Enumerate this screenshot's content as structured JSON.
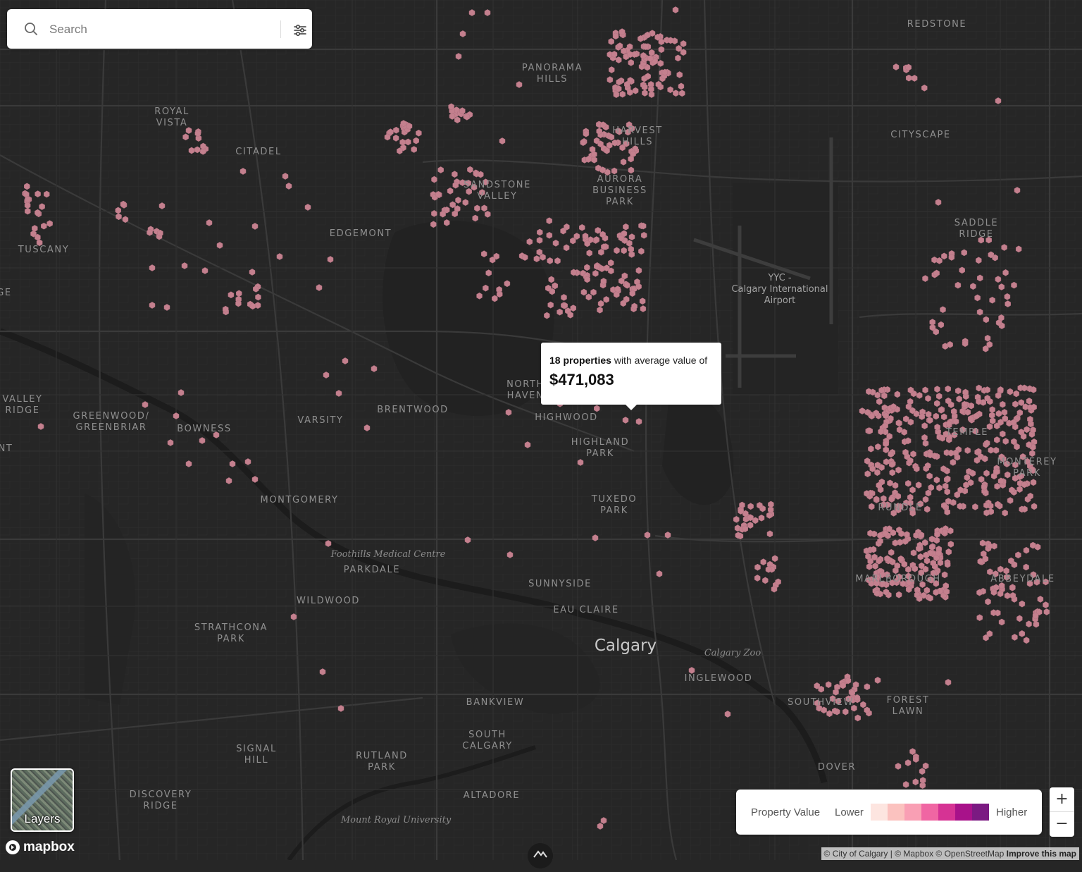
{
  "search": {
    "placeholder": "Search"
  },
  "icons": {
    "search": "search-icon",
    "filter": "sliders-icon",
    "compass": "mapbox-compass-icon"
  },
  "tooltip": {
    "count_text": "18 properties",
    "suffix_text": " with average value of",
    "value": "$471,083"
  },
  "legend": {
    "title": "Property Value",
    "lower": "Lower",
    "higher": "Higher",
    "colors": [
      "#fde5e0",
      "#fbc2bf",
      "#f99fb4",
      "#f066a3",
      "#d63394",
      "#a8128a",
      "#7b1a82"
    ]
  },
  "zoom": {
    "in": "+",
    "out": "−"
  },
  "layers": {
    "label": "Layers"
  },
  "branding": {
    "logo_text": "mapbox"
  },
  "attribution": {
    "text": "© City of Calgary | © Mapbox © OpenStreetMap",
    "improve": "Improve this map"
  },
  "map": {
    "city_label": "Calgary",
    "hex_color": "#c4808e",
    "background": "#262626",
    "neighbourhoods": [
      [
        "REDSTONE"
      ],
      [
        "PANORAMA",
        "HILLS"
      ],
      [
        "ROYAL",
        "VISTA"
      ],
      [
        "CITADEL"
      ],
      [
        "HARVEST",
        "HILLS"
      ],
      [
        "CITYSCAPE"
      ],
      [
        "SANDSTONE",
        "VALLEY"
      ],
      [
        "AURORA",
        "BUSINESS",
        "PARK"
      ],
      [
        "SADDLE",
        "RIDGE"
      ],
      [
        "TUSCANY"
      ],
      [
        "EDGEMONT"
      ],
      [
        "VALLEY",
        "RIDGE"
      ],
      [
        "GREENWOOD/",
        "GREENBRIAR"
      ],
      [
        "BOWNESS"
      ],
      [
        "VARSITY"
      ],
      [
        "BRENTWOOD"
      ],
      [
        "NORTH",
        "HAVEN"
      ],
      [
        "HIGHWOOD"
      ],
      [
        "HIGHLAND",
        "PARK"
      ],
      [
        "TEMPLE"
      ],
      [
        "MONTEREY",
        "PARK"
      ],
      [
        "RUNDLE"
      ],
      [
        "MONTGOMERY"
      ],
      [
        "TUXEDO",
        "PARK"
      ],
      [
        "PARKDALE"
      ],
      [
        "MARLBOROUGH"
      ],
      [
        "ABBEYDALE"
      ],
      [
        "SUNNYSIDE"
      ],
      [
        "WILDWOOD"
      ],
      [
        "EAU CLAIRE"
      ],
      [
        "STRATHCONA",
        "PARK"
      ],
      [
        "INGLEWOOD"
      ],
      [
        "BANKVIEW"
      ],
      [
        "SOUTHVIEW"
      ],
      [
        "FOREST",
        "LAWN"
      ],
      [
        "SOUTH",
        "CALGARY"
      ],
      [
        "SIGNAL",
        "HILL"
      ],
      [
        "RUTLAND",
        "PARK"
      ],
      [
        "DOVER"
      ],
      [
        "DISCOVERY",
        "RIDGE"
      ],
      [
        "ALTADORE"
      ],
      [
        "GE"
      ],
      [
        "NT"
      ]
    ],
    "places": [
      "Foothills Medical Centre",
      "Calgary Zoo",
      "Mount Royal University"
    ],
    "airport": [
      "YYC -",
      "Calgary International",
      "Airport"
    ]
  }
}
